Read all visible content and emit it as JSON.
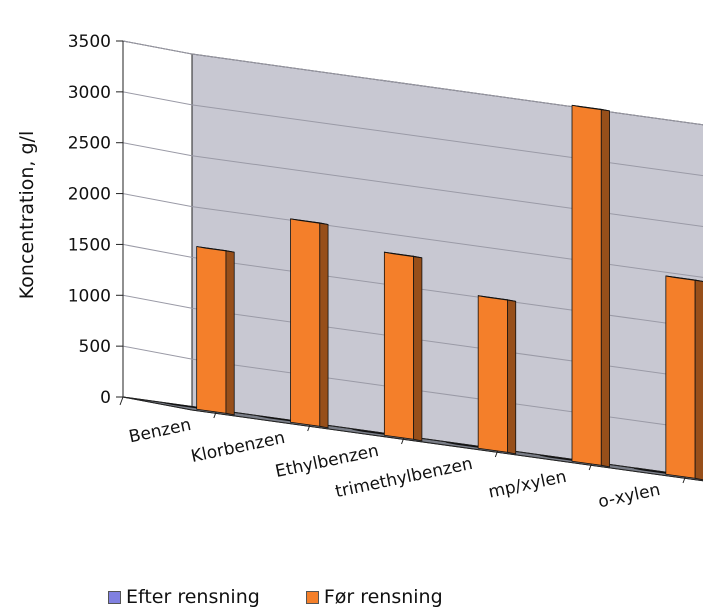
{
  "chart_data": {
    "type": "bar",
    "style": "3d-column",
    "ylabel": "Koncentration,  g/l",
    "ylim": [
      0,
      3500
    ],
    "yticks": [
      "0",
      "500",
      "1000",
      "1500",
      "2000",
      "2500",
      "3000",
      "3500"
    ],
    "grid": true,
    "legend_position": "bottom",
    "categories": [
      "Benzen",
      "Klorbenzen",
      "Ethylbenzen",
      "trimethylbenzen",
      "mp/xylen",
      "o-xylen"
    ],
    "series": [
      {
        "name": "Efter rensning",
        "values": [
          5,
          5,
          0,
          0,
          0,
          0
        ],
        "color": "#8080e0"
      },
      {
        "name": "Før rensning",
        "values": [
          1600,
          2000,
          1800,
          1500,
          3500,
          1950
        ],
        "color": "#f47f2a"
      }
    ],
    "colors": {
      "back_wall": "#c8c8d2",
      "floor": "#7a7e88",
      "grid": "#9a9aa6"
    }
  }
}
